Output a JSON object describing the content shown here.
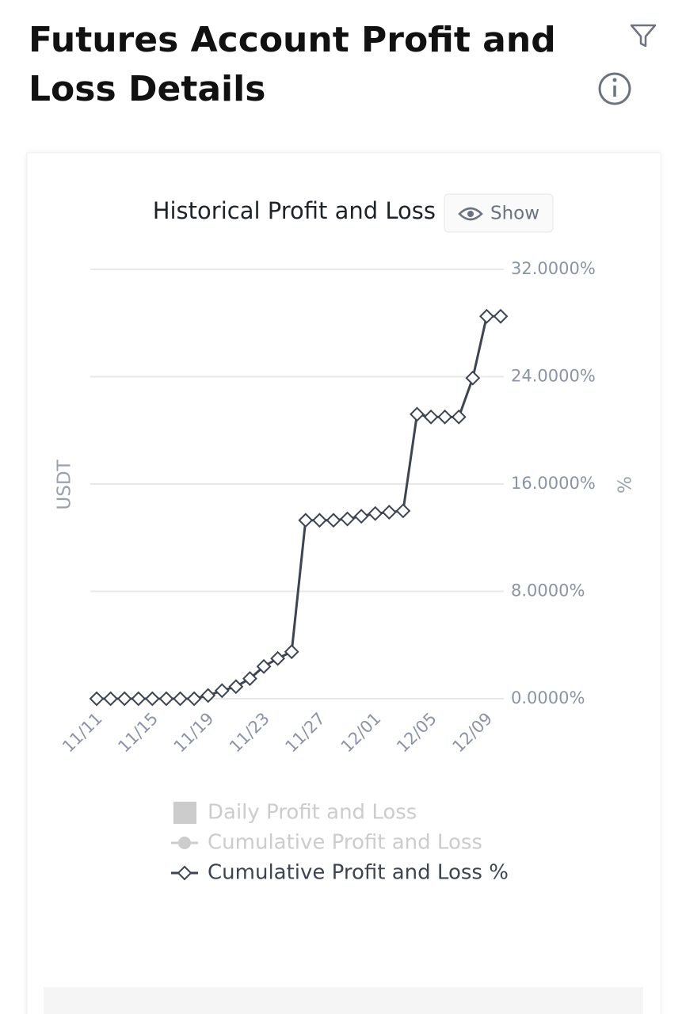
{
  "header": {
    "title": "Futures Account Profit and Loss Details"
  },
  "chart_data": {
    "type": "line",
    "title": "Historical Profit and Loss",
    "button": "Show",
    "y_label": "USDT",
    "y2_label": "%",
    "categories": [
      "11/11",
      null,
      null,
      null,
      "11/15",
      null,
      null,
      null,
      "11/19",
      null,
      null,
      null,
      "11/23",
      null,
      null,
      null,
      "11/27",
      null,
      null,
      null,
      "12/01",
      null,
      null,
      null,
      "12/05",
      null,
      null,
      null,
      "12/09",
      null
    ],
    "y2lim": [
      0,
      32
    ],
    "y2ticks": [
      {
        "value": 0,
        "label": "0.0000%"
      },
      {
        "value": 8,
        "label": "8.0000%"
      },
      {
        "value": 16,
        "label": "16.0000%"
      },
      {
        "value": 24,
        "label": "24.0000%"
      },
      {
        "value": 32,
        "label": "32.0000%"
      }
    ],
    "grid": true,
    "legend": [
      {
        "name": "Daily Profit and Loss",
        "color": "#cccccc"
      },
      {
        "name": "Cumulative Profit and Loss",
        "color": "#cccccc"
      }
    ],
    "series": [
      {
        "name": "Cumulative Profit and Loss %",
        "color": "#3d4452",
        "axis": "y2",
        "values": [
          0,
          0,
          0,
          0,
          0,
          0,
          0,
          0,
          0.24,
          0.6,
          0.9,
          1.5,
          2.4,
          3.0,
          3.5,
          13.3,
          13.3,
          13.3,
          13.4,
          13.6,
          13.8,
          13.9,
          14.0,
          21.2,
          21.0,
          21.0,
          21.0,
          23.9,
          28.5,
          28.5
        ]
      }
    ]
  }
}
